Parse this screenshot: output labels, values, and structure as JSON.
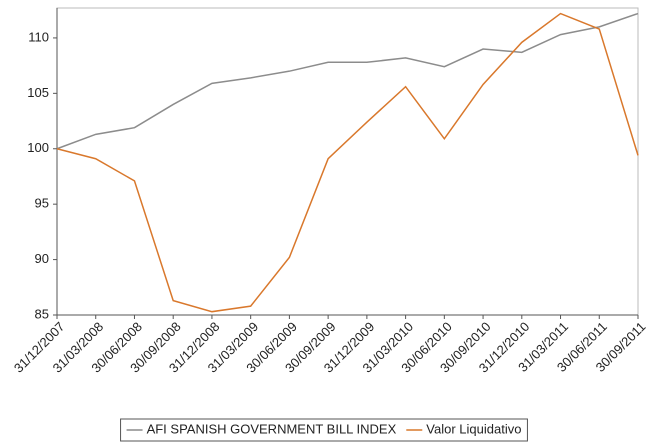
{
  "chart_data": {
    "type": "line",
    "categories": [
      "31/12/2007",
      "31/03/2008",
      "30/06/2008",
      "30/09/2008",
      "31/12/2008",
      "31/03/2009",
      "30/06/2009",
      "30/09/2009",
      "31/12/2009",
      "31/03/2010",
      "30/06/2010",
      "30/09/2010",
      "31/12/2010",
      "31/03/2011",
      "30/06/2011",
      "30/09/2011"
    ],
    "series": [
      {
        "name": "AFI SPANISH GOVERNMENT BILL INDEX",
        "color": "#8c8c8c",
        "values": [
          100,
          101.3,
          101.9,
          104,
          105.9,
          106.4,
          107,
          107.8,
          107.8,
          108.2,
          107.4,
          109,
          108.7,
          110.3,
          111,
          112.2
        ]
      },
      {
        "name": "Valor Liquidativo",
        "color": "#d9782c",
        "values": [
          100,
          99.1,
          97.1,
          86.3,
          85.3,
          85.8,
          90.2,
          99.1,
          102.4,
          105.6,
          100.9,
          105.8,
          109.6,
          112.2,
          110.8,
          99.4
        ]
      }
    ],
    "ylim": [
      85,
      112.7
    ],
    "yticks": [
      85,
      90,
      95,
      100,
      105,
      110
    ],
    "legend": "bottom"
  }
}
